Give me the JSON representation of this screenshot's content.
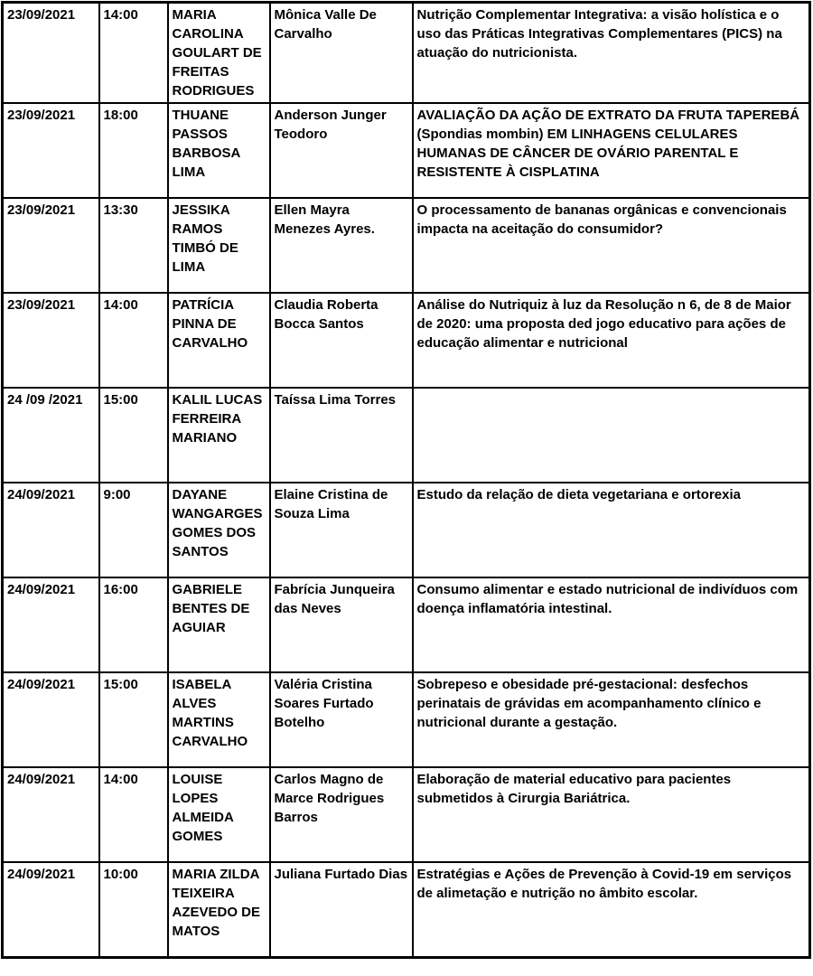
{
  "table": {
    "description": "Schedule of thesis defense presentations",
    "columns": [
      "date",
      "time",
      "student",
      "advisor",
      "title"
    ],
    "text_color": "#000000",
    "border_color": "#000000",
    "background_color": "#ffffff",
    "rows": [
      {
        "date": "23/09/2021",
        "time": "14:00",
        "student": "MARIA CAROLINA GOULART DE FREITAS RODRIGUES",
        "advisor": "Mônica Valle De Carvalho",
        "title": "Nutrição Complementar Integrativa: a visão holística e o uso das Práticas Integrativas Complementares (PICS) na atuação do nutricionista."
      },
      {
        "date": "23/09/2021",
        "time": "18:00",
        "student": "THUANE PASSOS BARBOSA LIMA",
        "advisor": "Anderson Junger Teodoro",
        "title": "AVALIAÇÃO DA AÇÃO DE EXTRATO DA FRUTA TAPEREBÁ (Spondias mombin) EM LINHAGENS CELULARES HUMANAS DE CÂNCER DE OVÁRIO PARENTAL E RESISTENTE À CISPLATINA"
      },
      {
        "date": "23/09/2021",
        "time": "13:30",
        "student": "JESSIKA RAMOS TIMBÓ DE LIMA",
        "advisor": "Ellen Mayra Menezes Ayres.",
        "title": "O processamento de bananas orgânicas e convencionais impacta na aceitação do consumidor?"
      },
      {
        "date": "23/09/2021",
        "time": "14:00",
        "student": "PATRÍCIA PINNA DE CARVALHO",
        "advisor": "Claudia Roberta Bocca Santos",
        "title": "Análise do Nutriquiz à luz da Resolução n 6, de 8 de Maior de 2020: uma proposta ded jogo educativo para ações de educação alimentar e nutricional"
      },
      {
        "date": "24 /09 /2021",
        "time": "15:00",
        "student": "KALIL LUCAS FERREIRA MARIANO",
        "advisor": "Taíssa Lima Torres",
        "title": ""
      },
      {
        "date": "24/09/2021",
        "time": "9:00",
        "student": "DAYANE WANGARGES GOMES DOS SANTOS",
        "advisor": "Elaine Cristina de Souza Lima",
        "title": "Estudo da relação de dieta vegetariana e ortorexia"
      },
      {
        "date": "24/09/2021",
        "time": "16:00",
        "student": "GABRIELE BENTES DE AGUIAR",
        "advisor": "Fabrícia Junqueira das Neves",
        "title": "Consumo alimentar e estado nutricional de indivíduos com doença inflamatória intestinal."
      },
      {
        "date": "24/09/2021",
        "time": "15:00",
        "student": "ISABELA ALVES MARTINS CARVALHO",
        "advisor": "Valéria Cristina Soares Furtado Botelho",
        "title": "Sobrepeso e obesidade pré-gestacional: desfechos perinatais de grávidas em acompanhamento clínico e nutricional durante a gestação."
      },
      {
        "date": "24/09/2021",
        "time": "14:00",
        "student": "LOUISE LOPES ALMEIDA GOMES",
        "advisor": "Carlos Magno de Marce Rodrigues Barros",
        "title": "Elaboração de material educativo para pacientes submetidos à Cirurgia Bariátrica."
      },
      {
        "date": "24/09/2021",
        "time": "10:00",
        "student": "MARIA ZILDA TEIXEIRA AZEVEDO DE MATOS",
        "advisor": "Juliana Furtado Dias",
        "title": "Estratégias e Ações de Prevenção à Covid-19 em serviços de alimetação e nutrição no âmbito escolar."
      }
    ]
  }
}
